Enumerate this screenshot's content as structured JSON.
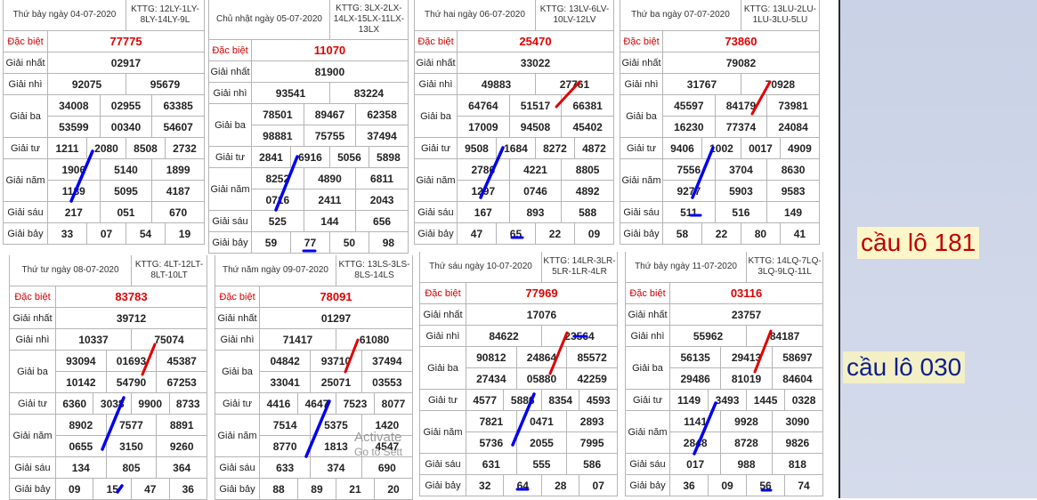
{
  "labels": {
    "db": "Đặc biệt",
    "g1": "Giải nhất",
    "g2": "Giải nhì",
    "g3": "Giải ba",
    "g4": "Giải tư",
    "g5": "Giải năm",
    "g6": "Giải sáu",
    "g7": "Giải bảy"
  },
  "cau_labels": {
    "red": "cầu lô 181",
    "blue": "cầu lô 030"
  },
  "watermark": {
    "line1": "Activate",
    "line2": "Go to Sett"
  },
  "colors": {
    "red": "#e00000",
    "blue": "#0000ee"
  },
  "tables": [
    {
      "date": "Thứ bảy ngày 04-07-2020",
      "kttg": "KTTG: 12LY-1LY-8LY-14LY-9L",
      "db": "77775",
      "g1": "02917",
      "g2": [
        "92075",
        "95679"
      ],
      "g3": [
        "34008",
        "02955",
        "63385",
        "53599",
        "00340",
        "54607"
      ],
      "g4": [
        "1211",
        "2080",
        "8508",
        "2732"
      ],
      "g5": [
        "1906",
        "5140",
        "1899",
        "1189",
        "5095",
        "4187"
      ],
      "g6": [
        "217",
        "051",
        "670"
      ],
      "g7": [
        "33",
        "07",
        "54",
        "19"
      ]
    },
    {
      "date": "Chủ nhật ngày 05-07-2020",
      "kttg": "KTTG: 3LX-2LX-14LX-15LX-11LX-13LX",
      "db": "11070",
      "g1": "81900",
      "g2": [
        "93541",
        "83224"
      ],
      "g3": [
        "78501",
        "89467",
        "62358",
        "98881",
        "75755",
        "37494"
      ],
      "g4": [
        "2841",
        "6916",
        "5056",
        "5898"
      ],
      "g5": [
        "8252",
        "4890",
        "6811",
        "0716",
        "2411",
        "2043"
      ],
      "g6": [
        "525",
        "144",
        "656"
      ],
      "g7": [
        "59",
        "77",
        "50",
        "98"
      ]
    },
    {
      "date": "Thứ hai ngày 06-07-2020",
      "kttg": "KTTG: 13LV-6LV-10LV-12LV",
      "db": "25470",
      "g1": "33022",
      "g2": [
        "49883",
        "27761"
      ],
      "g3": [
        "64764",
        "51517",
        "66381",
        "17009",
        "94508",
        "45402"
      ],
      "g4": [
        "9508",
        "1684",
        "8272",
        "4872"
      ],
      "g5": [
        "2786",
        "4221",
        "8805",
        "1297",
        "0746",
        "4892"
      ],
      "g6": [
        "167",
        "893",
        "588"
      ],
      "g7": [
        "47",
        "65",
        "22",
        "09"
      ]
    },
    {
      "date": "Thứ ba ngày 07-07-2020",
      "kttg": "KTTG: 13LU-2LU-1LU-3LU-5LU",
      "db": "73860",
      "g1": "79082",
      "g2": [
        "31767",
        "70928"
      ],
      "g3": [
        "45597",
        "84179",
        "73981",
        "16230",
        "77374",
        "24084"
      ],
      "g4": [
        "9406",
        "1002",
        "0017",
        "4909"
      ],
      "g5": [
        "7556",
        "3704",
        "8630",
        "9277",
        "5903",
        "9583"
      ],
      "g6": [
        "511",
        "516",
        "149"
      ],
      "g7": [
        "58",
        "22",
        "80",
        "41"
      ]
    },
    {
      "date": "Thứ tư ngày 08-07-2020",
      "kttg": "KTTG: 4LT-12LT-8LT-10LT",
      "db": "83783",
      "g1": "39712",
      "g2": [
        "10337",
        "75074"
      ],
      "g3": [
        "93094",
        "01693",
        "45387",
        "10142",
        "54790",
        "67253"
      ],
      "g4": [
        "6360",
        "3038",
        "9900",
        "8733"
      ],
      "g5": [
        "8902",
        "7577",
        "8891",
        "0655",
        "3150",
        "9260"
      ],
      "g6": [
        "134",
        "805",
        "364"
      ],
      "g7": [
        "09",
        "15",
        "47",
        "36"
      ]
    },
    {
      "date": "Thứ năm ngày 09-07-2020",
      "kttg": "KTTG: 13LS-3LS-8LS-14LS",
      "db": "78091",
      "g1": "01297",
      "g2": [
        "71417",
        "61080"
      ],
      "g3": [
        "04842",
        "93710",
        "37494",
        "33041",
        "25071",
        "03553"
      ],
      "g4": [
        "4416",
        "4647",
        "7523",
        "8077"
      ],
      "g5": [
        "7514",
        "5375",
        "1420",
        "8770",
        "1813",
        "4547"
      ],
      "g6": [
        "633",
        "374",
        "690"
      ],
      "g7": [
        "88",
        "89",
        "21",
        "20"
      ]
    },
    {
      "date": "Thứ sáu ngày 10-07-2020",
      "kttg": "KTTG: 14LR-3LR-5LR-1LR-4LR",
      "db": "77969",
      "g1": "17076",
      "g2": [
        "84622",
        "23564"
      ],
      "g3": [
        "90812",
        "24864",
        "85572",
        "27434",
        "05880",
        "42259"
      ],
      "g4": [
        "4577",
        "5886",
        "8354",
        "4593"
      ],
      "g5": [
        "7821",
        "0471",
        "2893",
        "5736",
        "2055",
        "7995"
      ],
      "g6": [
        "631",
        "555",
        "586"
      ],
      "g7": [
        "32",
        "64",
        "28",
        "07"
      ]
    },
    {
      "date": "Thứ bảy ngày 11-07-2020",
      "kttg": "KTTG: 14LQ-7LQ-3LQ-9LQ-11L",
      "db": "03116",
      "g1": "23757",
      "g2": [
        "55962",
        "84187"
      ],
      "g3": [
        "56135",
        "29413",
        "58697",
        "29486",
        "81019",
        "84604"
      ],
      "g4": [
        "1149",
        "3493",
        "1445",
        "0328"
      ],
      "g5": [
        "1141",
        "9928",
        "3090",
        "2848",
        "8728",
        "9826"
      ],
      "g6": [
        "017",
        "988",
        "818"
      ],
      "g7": [
        "36",
        "09",
        "56",
        "74"
      ]
    }
  ]
}
